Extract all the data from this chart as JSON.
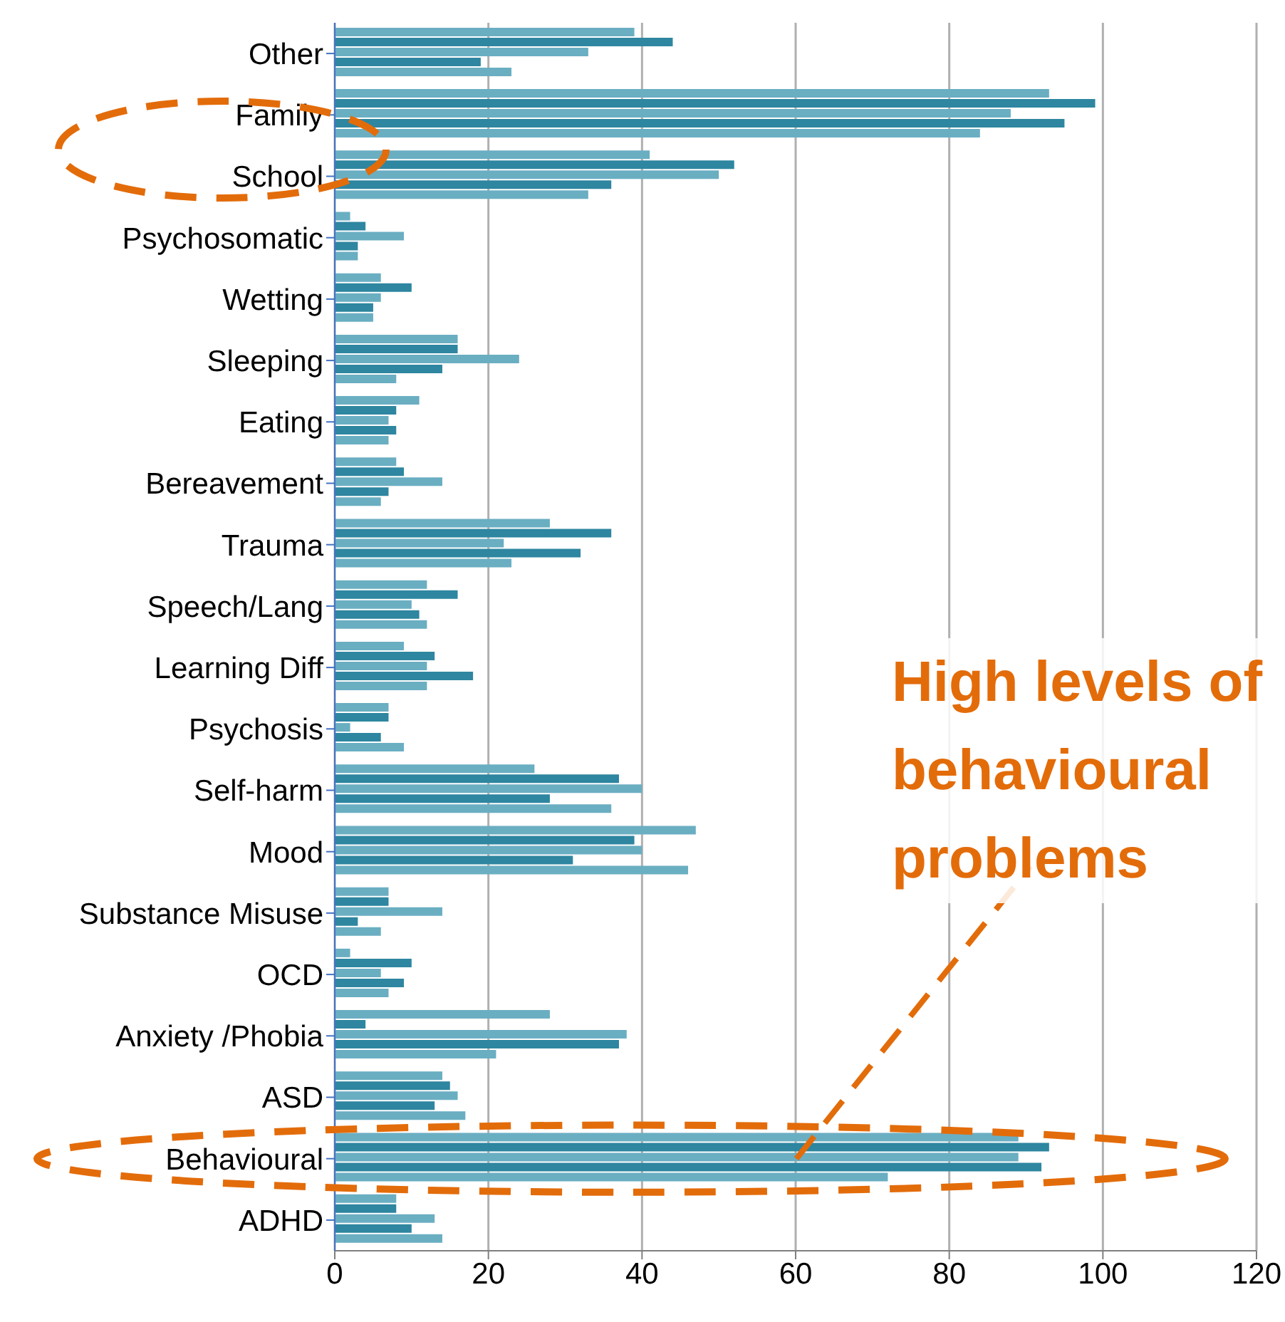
{
  "chart_data": {
    "type": "bar",
    "orientation": "horizontal",
    "categories": [
      "Other",
      "Family",
      "School",
      "Psychosomatic",
      "Wetting",
      "Sleeping",
      "Eating",
      "Bereavement",
      "Trauma",
      "Speech/Lang",
      "Learning Diff",
      "Psychosis",
      "Self-harm",
      "Mood",
      "Substance Misuse",
      "OCD",
      "Anxiety /Phobia",
      "ASD",
      "Behavioural",
      "ADHD"
    ],
    "series": [
      {
        "color": "#6aaec2",
        "values": [
          39,
          93,
          41,
          2,
          6,
          16,
          11,
          8,
          28,
          12,
          9,
          7,
          26,
          47,
          7,
          2,
          28,
          14,
          89,
          8
        ]
      },
      {
        "color": "#2e86a0",
        "values": [
          44,
          99,
          52,
          4,
          10,
          16,
          8,
          9,
          36,
          16,
          13,
          7,
          37,
          39,
          7,
          10,
          4,
          15,
          93,
          8
        ]
      },
      {
        "color": "#6aaec2",
        "values": [
          33,
          88,
          50,
          9,
          6,
          24,
          7,
          14,
          22,
          10,
          12,
          2,
          40,
          40,
          14,
          6,
          38,
          16,
          89,
          13
        ]
      },
      {
        "color": "#2e86a0",
        "values": [
          19,
          95,
          36,
          3,
          5,
          14,
          8,
          7,
          32,
          11,
          18,
          6,
          28,
          31,
          3,
          9,
          37,
          13,
          92,
          10
        ]
      },
      {
        "color": "#6aaec2",
        "values": [
          23,
          84,
          33,
          3,
          5,
          8,
          7,
          6,
          23,
          12,
          12,
          9,
          36,
          46,
          6,
          7,
          21,
          17,
          72,
          14
        ]
      }
    ],
    "xlim": [
      0,
      120
    ],
    "xticks": [
      0,
      20,
      40,
      60,
      80,
      100,
      120
    ],
    "grid": "x",
    "annotations": [
      {
        "text": "High levels of behavioural problems",
        "x": 60,
        "y": "Behavioural"
      }
    ]
  }
}
